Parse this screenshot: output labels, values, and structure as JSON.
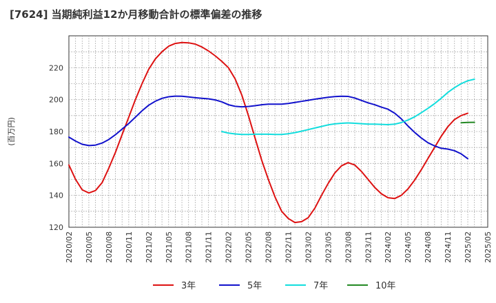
{
  "chart_data": {
    "type": "line",
    "title": "[7624]  当期純利益12か月移動合計の標準偏差の推移",
    "ylabel": "(百万円)",
    "xlabel": "",
    "ylim": [
      120,
      240
    ],
    "yticks": [
      120,
      140,
      160,
      180,
      200,
      220
    ],
    "x_range": [
      "2020-02",
      "2025-05"
    ],
    "xtick_labels": [
      "2020/02",
      "2020/05",
      "2020/08",
      "2020/11",
      "2021/02",
      "2021/05",
      "2021/08",
      "2021/11",
      "2022/02",
      "2022/05",
      "2022/08",
      "2022/11",
      "2023/02",
      "2023/05",
      "2023/08",
      "2023/11",
      "2024/02",
      "2024/05",
      "2024/08",
      "2024/11",
      "2025/02",
      "2025/05"
    ],
    "grid": true,
    "legend_position": "bottom",
    "series": [
      {
        "name": "3年",
        "color": "#dd1111",
        "points": [
          [
            "2020-02",
            159
          ],
          [
            "2020-03",
            150
          ],
          [
            "2020-04",
            143.5
          ],
          [
            "2020-05",
            141.5
          ],
          [
            "2020-06",
            143
          ],
          [
            "2020-07",
            148
          ],
          [
            "2020-08",
            157
          ],
          [
            "2020-09",
            167
          ],
          [
            "2020-10",
            178
          ],
          [
            "2020-11",
            189
          ],
          [
            "2020-12",
            200
          ],
          [
            "2021-01",
            210
          ],
          [
            "2021-02",
            219
          ],
          [
            "2021-03",
            225.5
          ],
          [
            "2021-04",
            230
          ],
          [
            "2021-05",
            233.5
          ],
          [
            "2021-06",
            235.2
          ],
          [
            "2021-07",
            235.8
          ],
          [
            "2021-08",
            235.6
          ],
          [
            "2021-09",
            234.8
          ],
          [
            "2021-10",
            233
          ],
          [
            "2021-11",
            230.5
          ],
          [
            "2021-12",
            227.5
          ],
          [
            "2022-01",
            224
          ],
          [
            "2022-02",
            220
          ],
          [
            "2022-03",
            213
          ],
          [
            "2022-04",
            203
          ],
          [
            "2022-05",
            190
          ],
          [
            "2022-06",
            176
          ],
          [
            "2022-07",
            162
          ],
          [
            "2022-08",
            150
          ],
          [
            "2022-09",
            139
          ],
          [
            "2022-10",
            130
          ],
          [
            "2022-11",
            125.5
          ],
          [
            "2022-12",
            123
          ],
          [
            "2023-01",
            123.5
          ],
          [
            "2023-02",
            126
          ],
          [
            "2023-03",
            132
          ],
          [
            "2023-04",
            140
          ],
          [
            "2023-05",
            147.5
          ],
          [
            "2023-06",
            154
          ],
          [
            "2023-07",
            158.5
          ],
          [
            "2023-08",
            160.5
          ],
          [
            "2023-09",
            159
          ],
          [
            "2023-10",
            155
          ],
          [
            "2023-11",
            150
          ],
          [
            "2023-12",
            145
          ],
          [
            "2024-01",
            141
          ],
          [
            "2024-02",
            138.5
          ],
          [
            "2024-03",
            138
          ],
          [
            "2024-04",
            140
          ],
          [
            "2024-05",
            144
          ],
          [
            "2024-06",
            149.5
          ],
          [
            "2024-07",
            156
          ],
          [
            "2024-08",
            163
          ],
          [
            "2024-09",
            170
          ],
          [
            "2024-10",
            177
          ],
          [
            "2024-11",
            183
          ],
          [
            "2024-12",
            187.5
          ],
          [
            "2025-01",
            190
          ],
          [
            "2025-02",
            191.5
          ]
        ]
      },
      {
        "name": "5年",
        "color": "#1111cc",
        "points": [
          [
            "2020-02",
            176.5
          ],
          [
            "2020-03",
            174
          ],
          [
            "2020-04",
            172
          ],
          [
            "2020-05",
            171.2
          ],
          [
            "2020-06",
            171.5
          ],
          [
            "2020-07",
            172.8
          ],
          [
            "2020-08",
            175
          ],
          [
            "2020-09",
            178
          ],
          [
            "2020-10",
            181.5
          ],
          [
            "2020-11",
            185
          ],
          [
            "2020-12",
            189
          ],
          [
            "2021-01",
            193
          ],
          [
            "2021-02",
            196.5
          ],
          [
            "2021-03",
            199
          ],
          [
            "2021-04",
            200.8
          ],
          [
            "2021-05",
            201.8
          ],
          [
            "2021-06",
            202.2
          ],
          [
            "2021-07",
            202.1
          ],
          [
            "2021-08",
            201.7
          ],
          [
            "2021-09",
            201.2
          ],
          [
            "2021-10",
            200.8
          ],
          [
            "2021-11",
            200.5
          ],
          [
            "2021-12",
            199.8
          ],
          [
            "2022-01",
            198.6
          ],
          [
            "2022-02",
            196.8
          ],
          [
            "2022-03",
            195.8
          ],
          [
            "2022-04",
            195.5
          ],
          [
            "2022-05",
            195.7
          ],
          [
            "2022-06",
            196.2
          ],
          [
            "2022-07",
            196.8
          ],
          [
            "2022-08",
            197.2
          ],
          [
            "2022-09",
            197.2
          ],
          [
            "2022-10",
            197.2
          ],
          [
            "2022-11",
            197.6
          ],
          [
            "2022-12",
            198.2
          ],
          [
            "2023-01",
            198.9
          ],
          [
            "2023-02",
            199.6
          ],
          [
            "2023-03",
            200.3
          ],
          [
            "2023-04",
            200.9
          ],
          [
            "2023-05",
            201.5
          ],
          [
            "2023-06",
            201.9
          ],
          [
            "2023-07",
            202.1
          ],
          [
            "2023-08",
            202
          ],
          [
            "2023-09",
            201
          ],
          [
            "2023-10",
            199.5
          ],
          [
            "2023-11",
            198
          ],
          [
            "2023-12",
            196.8
          ],
          [
            "2024-01",
            195.3
          ],
          [
            "2024-02",
            194
          ],
          [
            "2024-03",
            191.5
          ],
          [
            "2024-04",
            188
          ],
          [
            "2024-05",
            183.5
          ],
          [
            "2024-06",
            179.5
          ],
          [
            "2024-07",
            176
          ],
          [
            "2024-08",
            173
          ],
          [
            "2024-09",
            171
          ],
          [
            "2024-10",
            169.5
          ],
          [
            "2024-11",
            169
          ],
          [
            "2024-12",
            168
          ],
          [
            "2025-01",
            166
          ],
          [
            "2025-02",
            163
          ]
        ]
      },
      {
        "name": "7年",
        "color": "#11dddd",
        "points": [
          [
            "2022-01",
            180
          ],
          [
            "2022-02",
            179
          ],
          [
            "2022-03",
            178.5
          ],
          [
            "2022-04",
            178.2
          ],
          [
            "2022-05",
            178.2
          ],
          [
            "2022-06",
            178.3
          ],
          [
            "2022-07",
            178.3
          ],
          [
            "2022-08",
            178.3
          ],
          [
            "2022-09",
            178.2
          ],
          [
            "2022-10",
            178.2
          ],
          [
            "2022-11",
            178.6
          ],
          [
            "2022-12",
            179.3
          ],
          [
            "2023-01",
            180.2
          ],
          [
            "2023-02",
            181.2
          ],
          [
            "2023-03",
            182.2
          ],
          [
            "2023-04",
            183.2
          ],
          [
            "2023-05",
            184.2
          ],
          [
            "2023-06",
            184.8
          ],
          [
            "2023-07",
            185.2
          ],
          [
            "2023-08",
            185.4
          ],
          [
            "2023-09",
            185.2
          ],
          [
            "2023-10",
            184.9
          ],
          [
            "2023-11",
            184.6
          ],
          [
            "2023-12",
            184.6
          ],
          [
            "2024-01",
            184.5
          ],
          [
            "2024-02",
            184.3
          ],
          [
            "2024-03",
            184.6
          ],
          [
            "2024-04",
            185.6
          ],
          [
            "2024-05",
            187.2
          ],
          [
            "2024-06",
            189.2
          ],
          [
            "2024-07",
            191.8
          ],
          [
            "2024-08",
            194.5
          ],
          [
            "2024-09",
            197.5
          ],
          [
            "2024-10",
            200.8
          ],
          [
            "2024-11",
            204.5
          ],
          [
            "2024-12",
            207.5
          ],
          [
            "2025-01",
            210
          ],
          [
            "2025-02",
            211.8
          ],
          [
            "2025-03",
            212.8
          ]
        ]
      },
      {
        "name": "10年",
        "color": "#228822",
        "points": [
          [
            "2025-01",
            185.5
          ],
          [
            "2025-02",
            185.7
          ],
          [
            "2025-03",
            185.8
          ]
        ]
      }
    ]
  }
}
